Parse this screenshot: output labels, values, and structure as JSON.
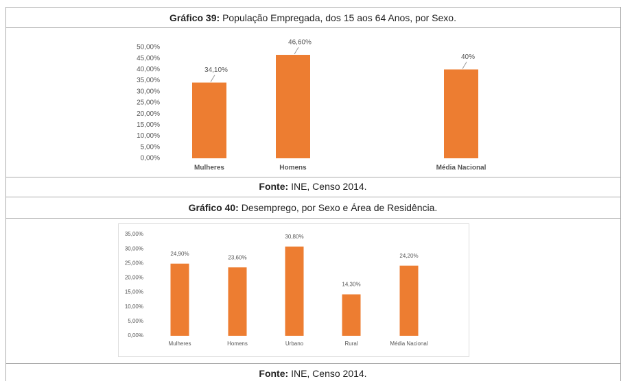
{
  "chart_data": [
    {
      "type": "bar",
      "title_label": "Gráfico 39:",
      "title": "População Empregada, dos 15 aos 64 Anos, por Sexo.",
      "categories": [
        "Mulheres",
        "Homens",
        "Média Nacional"
      ],
      "values": [
        34.1,
        46.6,
        40
      ],
      "value_labels": [
        "34,10%",
        "46,60%",
        "40%"
      ],
      "color": "#ed7d31",
      "ylim": [
        0,
        50
      ],
      "yticks": [
        {
          "value": 0,
          "label": "0,00%"
        },
        {
          "value": 5,
          "label": "5,00%"
        },
        {
          "value": 10,
          "label": "10,00%"
        },
        {
          "value": 15,
          "label": "15,00%"
        },
        {
          "value": 20,
          "label": "20,00%"
        },
        {
          "value": 25,
          "label": "25,00%"
        },
        {
          "value": 30,
          "label": "30,00%"
        },
        {
          "value": 35,
          "label": "35,00%"
        },
        {
          "value": 40,
          "label": "40,00%"
        },
        {
          "value": 45,
          "label": "45,00%"
        },
        {
          "value": 50,
          "label": "50,00%"
        }
      ],
      "grid": false,
      "source_label": "Fonte:",
      "source": "INE, Censo 2014."
    },
    {
      "type": "bar",
      "title_label": "Gráfico 40:",
      "title": "Desemprego, por Sexo e Área de Residência.",
      "categories": [
        "Mulheres",
        "Homens",
        "Urbano",
        "Rural",
        "Média Nacional"
      ],
      "values": [
        24.9,
        23.6,
        30.8,
        14.3,
        24.2
      ],
      "value_labels": [
        "24,90%",
        "23,60%",
        "30,80%",
        "14,30%",
        "24,20%"
      ],
      "color": "#ed7d31",
      "ylim": [
        0,
        35
      ],
      "yticks": [
        {
          "value": 0,
          "label": "0,00%"
        },
        {
          "value": 5,
          "label": "5,00%"
        },
        {
          "value": 10,
          "label": "10,00%"
        },
        {
          "value": 15,
          "label": "15,00%"
        },
        {
          "value": 20,
          "label": "20,00%"
        },
        {
          "value": 25,
          "label": "25,00%"
        },
        {
          "value": 30,
          "label": "30,00%"
        },
        {
          "value": 35,
          "label": "35,00%"
        }
      ],
      "grid": false,
      "source_label": "Fonte:",
      "source": "INE, Censo 2014."
    }
  ]
}
